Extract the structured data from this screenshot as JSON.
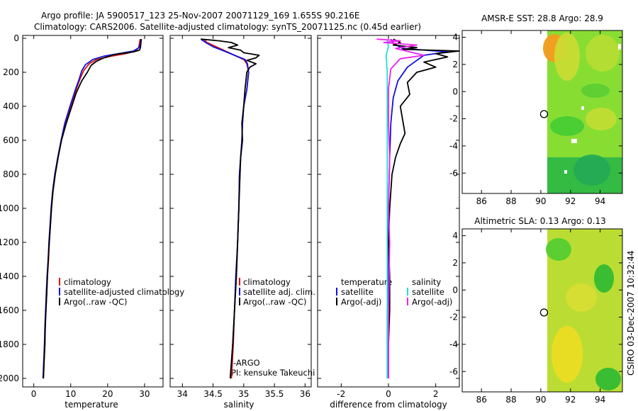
{
  "title_line1": "Argo profile: JA 5900517_123 25-Nov-2007 20071129_169 1.655S 90.216E",
  "title_line2": "Climatology: CARS2006. Satellite-adjusted climatology: synTS_20071125.nc (0.45d earlier)",
  "credit": "CSIRO 03-Dec-2007 10:32:44",
  "colors": {
    "red": "#dd1111",
    "blue": "#1111dd",
    "black": "#000000",
    "cyan": "#22dddd",
    "magenta": "#ee22ee"
  },
  "chart_data": [
    {
      "type": "line",
      "xlabel": "temperature",
      "ylabel": "",
      "xlim": [
        -3,
        35
      ],
      "ylim": [
        2050,
        0
      ],
      "ylim_note": "depth axis, increasing downward",
      "xticks": [
        0,
        10,
        20,
        30
      ],
      "yticks": [
        0,
        200,
        400,
        600,
        800,
        1000,
        1200,
        1400,
        1600,
        1800,
        2000
      ],
      "legend": [
        "climatology",
        "satellite-adjusted climatology",
        "Argo(..raw -QC)"
      ],
      "series": [
        {
          "name": "climatology",
          "color": "red",
          "points": [
            [
              28.8,
              5
            ],
            [
              28.6,
              30
            ],
            [
              28.4,
              55
            ],
            [
              27.5,
              75
            ],
            [
              25,
              90
            ],
            [
              21,
              105
            ],
            [
              17,
              125
            ],
            [
              15,
              150
            ],
            [
              13.5,
              190
            ],
            [
              12.5,
              240
            ],
            [
              11.5,
              300
            ],
            [
              10,
              400
            ],
            [
              8.5,
              500
            ],
            [
              7.5,
              600
            ],
            [
              6.6,
              700
            ],
            [
              5.8,
              800
            ],
            [
              5.2,
              900
            ],
            [
              4.8,
              1000
            ],
            [
              4.5,
              1100
            ],
            [
              4.2,
              1200
            ],
            [
              4,
              1300
            ],
            [
              3.7,
              1400
            ],
            [
              3.5,
              1500
            ],
            [
              3.3,
              1600
            ],
            [
              3.1,
              1700
            ],
            [
              3,
              1800
            ],
            [
              2.8,
              1900
            ],
            [
              2.6,
              2000
            ]
          ]
        },
        {
          "name": "satellite-adjusted climatology",
          "color": "blue",
          "points": [
            [
              29,
              5
            ],
            [
              28.9,
              30
            ],
            [
              28.5,
              55
            ],
            [
              27,
              75
            ],
            [
              23,
              90
            ],
            [
              19,
              105
            ],
            [
              16,
              125
            ],
            [
              14,
              155
            ],
            [
              13,
              190
            ],
            [
              12.3,
              240
            ],
            [
              11.3,
              300
            ],
            [
              9.8,
              400
            ],
            [
              8.4,
              500
            ],
            [
              7.4,
              600
            ],
            [
              6.5,
              700
            ],
            [
              5.7,
              800
            ],
            [
              5.1,
              900
            ],
            [
              4.7,
              1000
            ],
            [
              4.4,
              1100
            ],
            [
              4.1,
              1200
            ],
            [
              3.9,
              1300
            ],
            [
              3.6,
              1400
            ],
            [
              3.4,
              1500
            ],
            [
              3.2,
              1600
            ],
            [
              3,
              1700
            ],
            [
              2.9,
              1800
            ],
            [
              2.7,
              1900
            ],
            [
              2.5,
              2000
            ]
          ]
        },
        {
          "name": "Argo(..raw -QC)",
          "color": "black",
          "points": [
            [
              29.1,
              5
            ],
            [
              29,
              30
            ],
            [
              28.9,
              55
            ],
            [
              28.6,
              70
            ],
            [
              27,
              80
            ],
            [
              22,
              95
            ],
            [
              19,
              115
            ],
            [
              17,
              135
            ],
            [
              15.5,
              160
            ],
            [
              14.5,
              200
            ],
            [
              13,
              250
            ],
            [
              11.5,
              320
            ],
            [
              10.3,
              400
            ],
            [
              8.8,
              500
            ],
            [
              7.5,
              600
            ],
            [
              6.6,
              700
            ],
            [
              5.8,
              800
            ],
            [
              5.2,
              900
            ],
            [
              4.8,
              1000
            ],
            [
              4.5,
              1100
            ],
            [
              4.2,
              1200
            ],
            [
              3.9,
              1300
            ],
            [
              3.7,
              1400
            ],
            [
              3.5,
              1500
            ],
            [
              3.3,
              1600
            ],
            [
              3.1,
              1700
            ],
            [
              3,
              1800
            ],
            [
              2.8,
              1900
            ],
            [
              2.6,
              2000
            ]
          ]
        }
      ]
    },
    {
      "type": "line",
      "xlabel": "salinity",
      "ylabel": "",
      "xlim": [
        33.8,
        36.1
      ],
      "ylim": [
        2050,
        0
      ],
      "xticks": [
        34,
        34.5,
        35,
        35.5,
        36
      ],
      "legend": [
        "climatology",
        "satellite adj. clim.",
        "Argo(..raw -QC)"
      ],
      "annotations": [
        "J-ARGO",
        "PI: kensuke Takeuchi"
      ],
      "series": [
        {
          "name": "climatology",
          "color": "red",
          "points": [
            [
              34.35,
              5
            ],
            [
              34.4,
              25
            ],
            [
              34.55,
              50
            ],
            [
              34.7,
              75
            ],
            [
              34.85,
              100
            ],
            [
              35,
              125
            ],
            [
              35.05,
              150
            ],
            [
              35.08,
              200
            ],
            [
              35.05,
              300
            ],
            [
              35,
              400
            ],
            [
              34.98,
              500
            ],
            [
              34.97,
              600
            ],
            [
              34.95,
              700
            ],
            [
              34.93,
              800
            ],
            [
              34.92,
              1000
            ],
            [
              34.9,
              1200
            ],
            [
              34.88,
              1400
            ],
            [
              34.85,
              1600
            ],
            [
              34.83,
              1800
            ],
            [
              34.8,
              2000
            ]
          ]
        },
        {
          "name": "satellite adj. clim.",
          "color": "blue",
          "points": [
            [
              34.3,
              5
            ],
            [
              34.38,
              25
            ],
            [
              34.5,
              50
            ],
            [
              34.68,
              75
            ],
            [
              34.85,
              100
            ],
            [
              35.02,
              125
            ],
            [
              35.06,
              150
            ],
            [
              35.08,
              200
            ],
            [
              35.05,
              300
            ],
            [
              35,
              400
            ],
            [
              34.98,
              500
            ],
            [
              34.97,
              600
            ],
            [
              34.95,
              700
            ],
            [
              34.93,
              800
            ],
            [
              34.92,
              1000
            ],
            [
              34.9,
              1200
            ],
            [
              34.87,
              1400
            ],
            [
              34.85,
              1600
            ],
            [
              34.82,
              1800
            ],
            [
              34.78,
              2000
            ]
          ]
        },
        {
          "name": "Argo(..raw -QC)",
          "color": "black",
          "points": [
            [
              34.3,
              5
            ],
            [
              34.6,
              15
            ],
            [
              34.8,
              25
            ],
            [
              34.9,
              40
            ],
            [
              34.75,
              55
            ],
            [
              34.95,
              70
            ],
            [
              35,
              85
            ],
            [
              35.25,
              100
            ],
            [
              35.2,
              115
            ],
            [
              35.05,
              130
            ],
            [
              35.2,
              150
            ],
            [
              35.1,
              170
            ],
            [
              35.05,
              200
            ],
            [
              35.02,
              300
            ],
            [
              35,
              400
            ],
            [
              34.97,
              500
            ],
            [
              34.98,
              600
            ],
            [
              34.95,
              700
            ],
            [
              34.94,
              800
            ],
            [
              34.92,
              1000
            ],
            [
              34.9,
              1200
            ],
            [
              34.88,
              1400
            ],
            [
              34.85,
              1600
            ],
            [
              34.82,
              1800
            ],
            [
              34.78,
              2000
            ]
          ]
        }
      ]
    },
    {
      "type": "line",
      "xlabel": "difference from climatology",
      "ylabel": "",
      "xlim": [
        -3,
        3
      ],
      "ylim": [
        2050,
        0
      ],
      "xticks": [
        -2,
        0,
        2
      ],
      "legend_groups": [
        {
          "title": "temperature",
          "entries": [
            "satellite",
            "Argo(-adj)"
          ]
        },
        {
          "title": "salinity",
          "entries": [
            "satellite",
            "Argo(-adj)"
          ]
        }
      ],
      "series": [
        {
          "name": "temperature satellite",
          "color": "blue",
          "points": [
            [
              0.1,
              5
            ],
            [
              0.2,
              30
            ],
            [
              0.6,
              60
            ],
            [
              2.5,
              80
            ],
            [
              1.5,
              100
            ],
            [
              1.2,
              130
            ],
            [
              0.8,
              170
            ],
            [
              0.4,
              250
            ],
            [
              0.2,
              350
            ],
            [
              0.1,
              500
            ],
            [
              0.05,
              700
            ],
            [
              0,
              1000
            ],
            [
              0,
              1400
            ],
            [
              -0.05,
              1600
            ],
            [
              -0.05,
              2000
            ]
          ]
        },
        {
          "name": "temperature Argo(-adj)",
          "color": "black",
          "points": [
            [
              0.2,
              5
            ],
            [
              0.5,
              25
            ],
            [
              0.2,
              40
            ],
            [
              1.2,
              55
            ],
            [
              0.6,
              65
            ],
            [
              3,
              75
            ],
            [
              2,
              90
            ],
            [
              2.5,
              110
            ],
            [
              1.5,
              140
            ],
            [
              2,
              170
            ],
            [
              1.2,
              200
            ],
            [
              0.8,
              260
            ],
            [
              0.9,
              330
            ],
            [
              0.5,
              400
            ],
            [
              0.6,
              480
            ],
            [
              0.7,
              560
            ],
            [
              0.5,
              620
            ],
            [
              0.3,
              700
            ],
            [
              0.15,
              800
            ],
            [
              0.05,
              1000
            ],
            [
              0,
              1200
            ],
            [
              0.05,
              1400
            ],
            [
              0.05,
              1600
            ],
            [
              0,
              1800
            ],
            [
              0,
              2000
            ]
          ]
        },
        {
          "name": "salinity satellite",
          "color": "cyan",
          "points": [
            [
              -0.05,
              5
            ],
            [
              0,
              50
            ],
            [
              -0.1,
              100
            ],
            [
              -0.05,
              200
            ],
            [
              -0.05,
              400
            ],
            [
              -0.05,
              800
            ],
            [
              -0.05,
              1200
            ],
            [
              -0.05,
              1600
            ],
            [
              -0.05,
              2000
            ]
          ]
        },
        {
          "name": "salinity Argo(-adj)",
          "color": "magenta",
          "points": [
            [
              -0.5,
              5
            ],
            [
              0.5,
              15
            ],
            [
              -0.2,
              25
            ],
            [
              1.2,
              40
            ],
            [
              0.3,
              60
            ],
            [
              0.9,
              80
            ],
            [
              1.5,
              100
            ],
            [
              0.5,
              120
            ],
            [
              0.1,
              180
            ],
            [
              0,
              300
            ],
            [
              0,
              500
            ],
            [
              0.05,
              700
            ],
            [
              0,
              1000
            ],
            [
              0.05,
              1200
            ],
            [
              0,
              1600
            ],
            [
              0,
              2000
            ]
          ]
        }
      ]
    },
    {
      "type": "heatmap",
      "title": "AMSR-E SST: 28.8 Argo: 28.9",
      "xlim": [
        84.7,
        95.5
      ],
      "ylim": [
        -7.5,
        4.5
      ],
      "xticks": [
        86,
        88,
        90,
        92,
        94
      ],
      "yticks": [
        -6,
        -4,
        -2,
        0,
        2,
        4
      ],
      "data_region_xmin": 90,
      "marker": {
        "lon": 90.216,
        "lat": -1.655
      },
      "field": "green-yellow SST field with an orange warm patch near 90.5E 3N and green band south of -5"
    },
    {
      "type": "heatmap",
      "title": "Altimetric SLA: 0.13 Argo: 0.13",
      "xlim": [
        84.7,
        95.5
      ],
      "ylim": [
        -7.5,
        4.5
      ],
      "xticks": [
        86,
        88,
        90,
        92,
        94
      ],
      "yticks": [
        -6,
        -4,
        -2,
        0,
        2,
        4
      ],
      "data_region_xmin": 90,
      "marker": {
        "lon": 90.216,
        "lat": -1.655
      },
      "field": "yellow-green SLA field with green blobs near 91E 3N, 93.5E 1N and 94E -6N"
    }
  ]
}
